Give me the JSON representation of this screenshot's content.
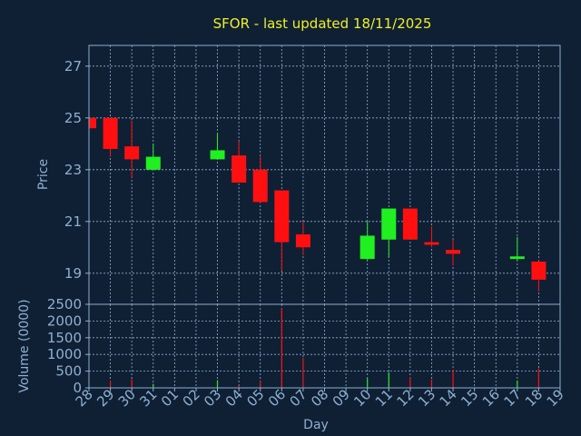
{
  "chart_data": [
    {
      "type": "candlestick",
      "title": "SFOR - last updated 18/11/2025",
      "ylabel": "Price",
      "ylim": [
        17.8,
        27.8
      ],
      "yticks": [
        19,
        21,
        23,
        25,
        27
      ],
      "grid": true,
      "colors": {
        "up": "#20f020",
        "down": "#ff1010",
        "background": "#0f2035",
        "grid": "#8fb0d0",
        "title": "#f0f020",
        "text": "#8fb0d0"
      },
      "candles": [
        {
          "day": "28",
          "open": 25.0,
          "high": 25.0,
          "low": 24.6,
          "close": 24.6
        },
        {
          "day": "29",
          "open": 25.0,
          "high": 25.0,
          "low": 23.5,
          "close": 23.8
        },
        {
          "day": "30",
          "open": 23.9,
          "high": 24.9,
          "low": 22.7,
          "close": 23.4
        },
        {
          "day": "31",
          "open": 23.0,
          "high": 24.0,
          "low": 23.0,
          "close": 23.5
        },
        {
          "day": "03",
          "open": 23.4,
          "high": 24.4,
          "low": 23.4,
          "close": 23.75
        },
        {
          "day": "04",
          "open": 23.55,
          "high": 24.1,
          "low": 22.5,
          "close": 22.5
        },
        {
          "day": "05",
          "open": 23.0,
          "high": 23.5,
          "low": 21.7,
          "close": 21.75
        },
        {
          "day": "06",
          "open": 22.2,
          "high": 22.2,
          "low": 19.1,
          "close": 20.2
        },
        {
          "day": "07",
          "open": 20.5,
          "high": 21.0,
          "low": 19.7,
          "close": 20.0
        },
        {
          "day": "10",
          "open": 19.55,
          "high": 21.0,
          "low": 19.5,
          "close": 20.45
        },
        {
          "day": "11",
          "open": 20.3,
          "high": 21.5,
          "low": 19.6,
          "close": 21.5
        },
        {
          "day": "12",
          "open": 21.5,
          "high": 21.5,
          "low": 20.3,
          "close": 20.3
        },
        {
          "day": "13",
          "open": 20.2,
          "high": 20.8,
          "low": 20.0,
          "close": 20.1
        },
        {
          "day": "14",
          "open": 19.9,
          "high": 20.3,
          "low": 19.3,
          "close": 19.75
        },
        {
          "day": "17",
          "open": 19.55,
          "high": 20.4,
          "low": 19.5,
          "close": 19.65
        },
        {
          "day": "18",
          "open": 19.45,
          "high": 19.5,
          "low": 18.3,
          "close": 18.75
        }
      ]
    },
    {
      "type": "bar",
      "ylabel": "Volume (0000)",
      "xlabel": "Day",
      "ylim": [
        0,
        2500
      ],
      "yticks": [
        0,
        500,
        1000,
        1500,
        2000,
        2500
      ],
      "grid": true,
      "categories": [
        "28",
        "29",
        "30",
        "31",
        "01",
        "02",
        "03",
        "04",
        "05",
        "06",
        "07",
        "08",
        "09",
        "10",
        "11",
        "12",
        "13",
        "14",
        "15",
        "16",
        "17",
        "18",
        "19"
      ],
      "volumes": [
        {
          "day": "29",
          "value": 220,
          "direction": "down"
        },
        {
          "day": "30",
          "value": 260,
          "direction": "down"
        },
        {
          "day": "31",
          "value": 120,
          "direction": "up"
        },
        {
          "day": "03",
          "value": 230,
          "direction": "up"
        },
        {
          "day": "04",
          "value": 60,
          "direction": "down"
        },
        {
          "day": "05",
          "value": 200,
          "direction": "down"
        },
        {
          "day": "06",
          "value": 2380,
          "direction": "down"
        },
        {
          "day": "07",
          "value": 900,
          "direction": "down"
        },
        {
          "day": "10",
          "value": 280,
          "direction": "up"
        },
        {
          "day": "11",
          "value": 470,
          "direction": "up"
        },
        {
          "day": "12",
          "value": 320,
          "direction": "down"
        },
        {
          "day": "13",
          "value": 250,
          "direction": "down"
        },
        {
          "day": "14",
          "value": 530,
          "direction": "down"
        },
        {
          "day": "17",
          "value": 220,
          "direction": "up"
        },
        {
          "day": "18",
          "value": 580,
          "direction": "down"
        }
      ]
    }
  ]
}
